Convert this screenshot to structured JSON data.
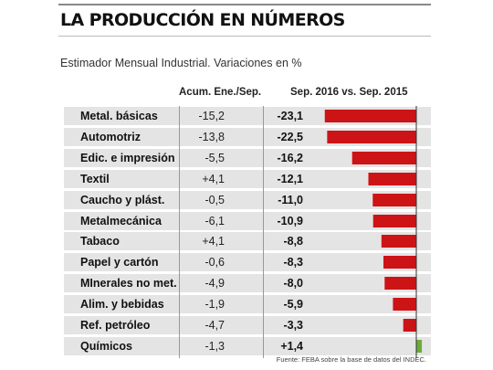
{
  "header": {
    "title": "LA PRODUCCIÓN EN NÚMEROS",
    "subtitle": "Estimador Mensual Industrial. Variaciones en %"
  },
  "columns": {
    "acum": "Acum. Ene./Sep.",
    "sep": "Sep. 2016 vs. Sep. 2015"
  },
  "source": "Fuente: FEBA sobre la base de datos del INDEC.",
  "colors": {
    "negative": "#cc1417",
    "positive": "#6aac3a",
    "row_band": "#e4e4e4"
  },
  "chart_data": {
    "type": "table",
    "columns": [
      "Acum. Ene./Sep.",
      "Sep. 2016 vs. Sep. 2015"
    ],
    "rows": [
      {
        "category": "Metal. básicas",
        "acum": "-15,2",
        "sep": "-23,1",
        "value": -23.1
      },
      {
        "category": "Automotriz",
        "acum": "-13,8",
        "sep": "-22,5",
        "value": -22.5
      },
      {
        "category": "Edic. e impresión",
        "acum": "-5,5",
        "sep": "-16,2",
        "value": -16.2
      },
      {
        "category": "Textil",
        "acum": "+4,1",
        "sep": "-12,1",
        "value": -12.1
      },
      {
        "category": "Caucho y plást.",
        "acum": "-0,5",
        "sep": "-11,0",
        "value": -11.0
      },
      {
        "category": "Metalmecánica",
        "acum": "-6,1",
        "sep": "-10,9",
        "value": -10.9
      },
      {
        "category": "Tabaco",
        "acum": "+4,1",
        "sep": "-8,8",
        "value": -8.8
      },
      {
        "category": "Papel y cartón",
        "acum": "-0,6",
        "sep": "-8,3",
        "value": -8.3
      },
      {
        "category": "MInerales no met.",
        "acum": "-4,9",
        "sep": "-8,0",
        "value": -8.0
      },
      {
        "category": "Alim. y bebidas",
        "acum": "-1,9",
        "sep": "-5,9",
        "value": -5.9
      },
      {
        "category": "Ref. petróleo",
        "acum": "-4,7",
        "sep": "-3,3",
        "value": -3.3
      },
      {
        "category": "Químicos",
        "acum": "-1,3",
        "sep": "+1,4",
        "value": 1.4
      }
    ]
  }
}
